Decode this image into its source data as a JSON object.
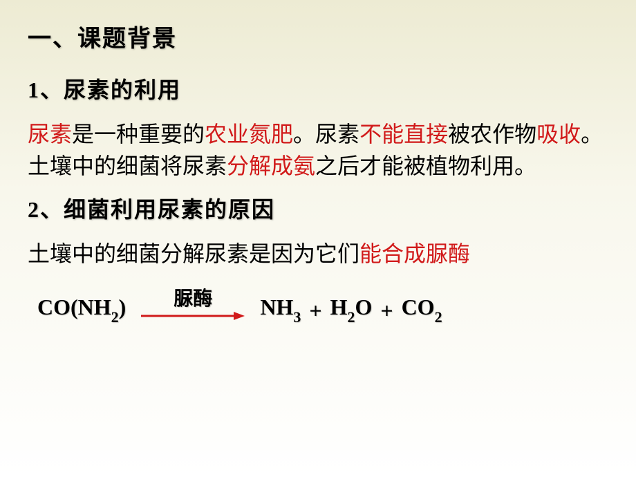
{
  "section_title": "一、课题背景",
  "item1_title": "1、尿素的利用",
  "para1_parts": [
    {
      "t": "尿素",
      "c": "red"
    },
    {
      "t": "是一种重要的",
      "c": "black"
    },
    {
      "t": "农业氮肥",
      "c": "red"
    },
    {
      "t": "。尿素",
      "c": "black"
    },
    {
      "t": "不能直接",
      "c": "red"
    },
    {
      "t": "被农作物",
      "c": "black"
    },
    {
      "t": "吸收",
      "c": "red"
    },
    {
      "t": "。土壤中的细菌将尿素",
      "c": "black"
    },
    {
      "t": "分解成氨",
      "c": "red"
    },
    {
      "t": "之后才能被植物利用。",
      "c": "black"
    }
  ],
  "item2_title": "2、细菌利用尿素的原因",
  "para2_parts": [
    {
      "t": "土壤中的细菌分解尿素是因为它们",
      "c": "black"
    },
    {
      "t": "能合成脲酶",
      "c": "red"
    }
  ],
  "formula": {
    "reactant_main": "CO(NH",
    "reactant_sub": "2",
    "reactant_tail": ")",
    "arrow_label": "脲酶",
    "arrow_color": "#d11a1a",
    "p1_main": "NH",
    "p1_sub": "3",
    "plus1": "+",
    "p2_main": "H",
    "p2_sub": "2",
    "p2_tail": "O",
    "plus2": "+",
    "p3_main": "CO",
    "p3_sub": "2"
  },
  "style": {
    "bg_gradient_top": "#edebd3",
    "bg_gradient_bottom": "#ffffff",
    "red_color": "#d11a1a",
    "black_color": "#000000",
    "heading_fontsize": 34,
    "subheading_fontsize": 32,
    "body_fontsize": 32,
    "formula_fontsize": 32,
    "arrow_label_fontsize": 28
  }
}
